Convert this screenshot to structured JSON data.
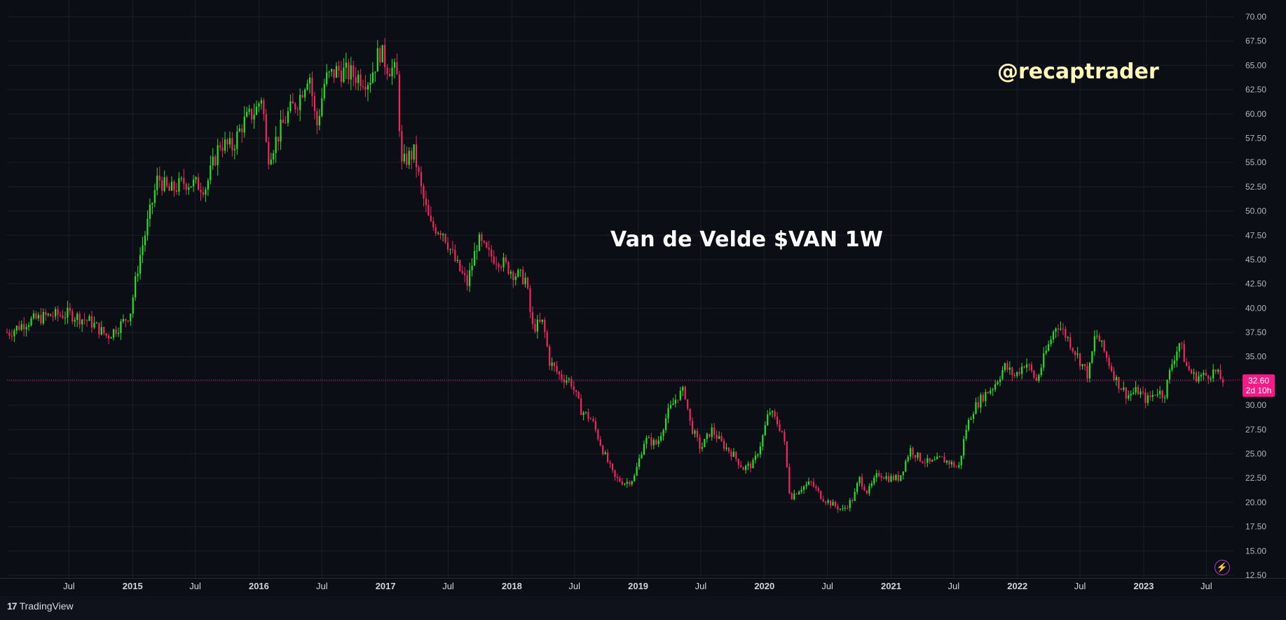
{
  "chart_data": {
    "type": "candlestick",
    "title": "Van de Velde $VAN 1W",
    "watermark": "@recaptrader",
    "ylim": [
      12.5,
      70.0
    ],
    "y_ticks": [
      "12.50",
      "15.00",
      "17.50",
      "20.00",
      "22.50",
      "25.00",
      "27.50",
      "30.00",
      "32.50",
      "35.00",
      "37.50",
      "40.00",
      "42.50",
      "45.00",
      "47.50",
      "50.00",
      "52.50",
      "55.00",
      "57.50",
      "60.00",
      "62.50",
      "65.00",
      "67.50",
      "70.00"
    ],
    "x_labels": [
      {
        "label": "Jul",
        "date": "2014-07-01"
      },
      {
        "label": "2015",
        "date": "2015-01-01"
      },
      {
        "label": "Jul",
        "date": "2015-07-01"
      },
      {
        "label": "2016",
        "date": "2016-01-01"
      },
      {
        "label": "Jul",
        "date": "2016-07-01"
      },
      {
        "label": "2017",
        "date": "2017-01-01"
      },
      {
        "label": "Jul",
        "date": "2017-07-01"
      },
      {
        "label": "2018",
        "date": "2018-01-01"
      },
      {
        "label": "Jul",
        "date": "2018-07-01"
      },
      {
        "label": "2019",
        "date": "2019-01-01"
      },
      {
        "label": "Jul",
        "date": "2019-07-01"
      },
      {
        "label": "2020",
        "date": "2020-01-01"
      },
      {
        "label": "Jul",
        "date": "2020-07-01"
      },
      {
        "label": "2021",
        "date": "2021-01-01"
      },
      {
        "label": "Jul",
        "date": "2021-07-01"
      },
      {
        "label": "2022",
        "date": "2022-01-01"
      },
      {
        "label": "Jul",
        "date": "2022-07-01"
      },
      {
        "label": "2023",
        "date": "2023-01-01"
      },
      {
        "label": "Jul",
        "date": "2023-07-01"
      }
    ],
    "close_path": [
      [
        "2014-01-10",
        37.5
      ],
      [
        "2014-03-01",
        38.6
      ],
      [
        "2014-05-01",
        39.2
      ],
      [
        "2014-07-01",
        39.4
      ],
      [
        "2014-09-01",
        38.6
      ],
      [
        "2014-10-20",
        37.1
      ],
      [
        "2014-12-01",
        38.4
      ],
      [
        "2014-12-25",
        39.5
      ],
      [
        "2015-01-20",
        45.0
      ],
      [
        "2015-02-15",
        49.0
      ],
      [
        "2015-03-15",
        53.5
      ],
      [
        "2015-04-15",
        52.0
      ],
      [
        "2015-06-01",
        53.0
      ],
      [
        "2015-08-01",
        52.5
      ],
      [
        "2015-09-10",
        57.0
      ],
      [
        "2015-10-15",
        56.5
      ],
      [
        "2015-11-15",
        59.0
      ],
      [
        "2015-12-25",
        60.5
      ],
      [
        "2016-01-10",
        62.0
      ],
      [
        "2016-01-25",
        55.5
      ],
      [
        "2016-02-15",
        57.0
      ],
      [
        "2016-03-25",
        60.0
      ],
      [
        "2016-04-25",
        61.5
      ],
      [
        "2016-05-25",
        64.5
      ],
      [
        "2016-06-15",
        58.5
      ],
      [
        "2016-07-10",
        63.5
      ],
      [
        "2016-08-15",
        64.5
      ],
      [
        "2016-10-01",
        64.0
      ],
      [
        "2016-11-15",
        63.5
      ],
      [
        "2016-12-15",
        66.5
      ],
      [
        "2017-01-05",
        65.0
      ],
      [
        "2017-01-25",
        64.5
      ],
      [
        "2017-02-05",
        63.5
      ],
      [
        "2017-02-15",
        54.5
      ],
      [
        "2017-03-05",
        55.5
      ],
      [
        "2017-03-25",
        56.0
      ],
      [
        "2017-04-15",
        52.0
      ],
      [
        "2017-05-10",
        48.5
      ],
      [
        "2017-06-15",
        48.0
      ],
      [
        "2017-07-25",
        44.5
      ],
      [
        "2017-08-25",
        42.5
      ],
      [
        "2017-09-25",
        47.0
      ],
      [
        "2017-10-25",
        45.5
      ],
      [
        "2017-11-25",
        45.0
      ],
      [
        "2018-01-10",
        43.5
      ],
      [
        "2018-02-10",
        43.0
      ],
      [
        "2018-03-01",
        38.0
      ],
      [
        "2018-04-01",
        38.5
      ],
      [
        "2018-04-20",
        34.5
      ],
      [
        "2018-05-20",
        33.0
      ],
      [
        "2018-06-20",
        32.5
      ],
      [
        "2018-07-20",
        29.5
      ],
      [
        "2018-08-20",
        28.5
      ],
      [
        "2018-09-25",
        25.0
      ],
      [
        "2018-10-25",
        22.5
      ],
      [
        "2018-11-25",
        22.0
      ],
      [
        "2018-12-20",
        22.5
      ],
      [
        "2019-01-20",
        26.5
      ],
      [
        "2019-02-25",
        26.0
      ],
      [
        "2019-03-25",
        29.0
      ],
      [
        "2019-04-25",
        31.0
      ],
      [
        "2019-05-15",
        31.5
      ],
      [
        "2019-06-01",
        28.0
      ],
      [
        "2019-07-01",
        25.5
      ],
      [
        "2019-08-01",
        27.5
      ],
      [
        "2019-09-01",
        26.0
      ],
      [
        "2019-10-01",
        25.0
      ],
      [
        "2019-11-01",
        23.5
      ],
      [
        "2019-12-01",
        24.0
      ],
      [
        "2019-12-25",
        26.5
      ],
      [
        "2020-01-15",
        29.5
      ],
      [
        "2020-02-10",
        28.0
      ],
      [
        "2020-02-25",
        27.0
      ],
      [
        "2020-03-15",
        20.5
      ],
      [
        "2020-04-15",
        21.5
      ],
      [
        "2020-05-15",
        22.0
      ],
      [
        "2020-06-15",
        20.5
      ],
      [
        "2020-07-15",
        19.8
      ],
      [
        "2020-08-15",
        19.2
      ],
      [
        "2020-09-15",
        20.5
      ],
      [
        "2020-10-01",
        22.5
      ],
      [
        "2020-10-25",
        21.0
      ],
      [
        "2020-11-25",
        23.0
      ],
      [
        "2020-12-25",
        22.5
      ],
      [
        "2021-01-25",
        22.5
      ],
      [
        "2021-02-25",
        25.5
      ],
      [
        "2021-03-25",
        24.5
      ],
      [
        "2021-04-25",
        24.0
      ],
      [
        "2021-05-25",
        24.5
      ],
      [
        "2021-06-25",
        24.0
      ],
      [
        "2021-07-15",
        23.5
      ],
      [
        "2021-08-05",
        27.5
      ],
      [
        "2021-08-25",
        29.5
      ],
      [
        "2021-09-25",
        31.0
      ],
      [
        "2021-10-25",
        32.0
      ],
      [
        "2021-11-25",
        34.0
      ],
      [
        "2021-12-25",
        33.0
      ],
      [
        "2022-01-25",
        34.5
      ],
      [
        "2022-02-25",
        32.5
      ],
      [
        "2022-03-25",
        35.5
      ],
      [
        "2022-04-25",
        38.5
      ],
      [
        "2022-05-25",
        37.0
      ],
      [
        "2022-06-25",
        35.0
      ],
      [
        "2022-07-25",
        33.0
      ],
      [
        "2022-08-15",
        37.5
      ],
      [
        "2022-09-15",
        35.0
      ],
      [
        "2022-10-15",
        32.5
      ],
      [
        "2022-11-15",
        31.0
      ],
      [
        "2022-12-15",
        31.5
      ],
      [
        "2023-01-10",
        30.5
      ],
      [
        "2023-02-10",
        31.5
      ],
      [
        "2023-03-01",
        31.0
      ],
      [
        "2023-03-25",
        34.5
      ],
      [
        "2023-04-15",
        36.5
      ],
      [
        "2023-05-05",
        34.0
      ],
      [
        "2023-05-25",
        33.0
      ],
      [
        "2023-06-25",
        33.0
      ],
      [
        "2023-07-25",
        33.5
      ],
      [
        "2023-08-15",
        32.6
      ]
    ],
    "last_price": "32.60",
    "countdown": "2d 10h",
    "colors": {
      "up": "#26e02a",
      "down": "#f2275d",
      "last_price_line": "#f51a87",
      "background": "#0c0e15",
      "grid": "#1b1e28",
      "axis_text": "#b2b5be"
    },
    "grid": true
  },
  "footer": {
    "brand": "TradingView"
  }
}
